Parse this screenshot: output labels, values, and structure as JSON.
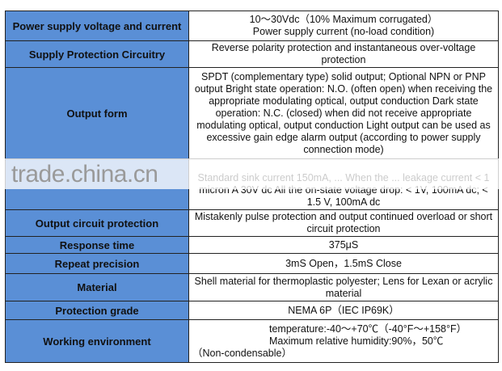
{
  "rows": [
    {
      "key": "Power supply voltage and current",
      "value": [
        "10～30Vdc（10% Maximum corrugated）",
        "Power supply current (no-load condition)"
      ]
    },
    {
      "key": "Supply Protection Circuitry",
      "value": [
        "Reverse polarity protection and instantaneous over-voltage protection"
      ]
    },
    {
      "key": "Output form",
      "value": [
        "SPDT (complementary type) solid output; Optional NPN or PNP output Bright state operation: N.O. (often open) when receiving the appropriate modulating optical, output conduction Dark state operation: N.C. (closed) when did not receive appropriate modulating optical, output conduction Light output can be used as excessive gain edge alarm output (according to power supply connection mode)"
      ]
    },
    {
      "key": "",
      "value": [
        "Standard sink current 150mA, ... When the ... leakage current < 1 micron A 30V dc All the on-state voltage drop: < 1V, 100mA dc; < 1.5 V, 100mA dc"
      ]
    },
    {
      "key": "Output circuit protection",
      "value": [
        "Mistakenly pulse protection and output continued overload or short circuit protection"
      ]
    },
    {
      "key": "Response time",
      "value": [
        "375μS"
      ]
    },
    {
      "key": "Repeat precision",
      "value": [
        "3mS Open，1.5mS Close"
      ]
    },
    {
      "key": "Material",
      "value": [
        "Shell material for thermoplastic polyester; Lens for Lexan or acrylic material"
      ]
    },
    {
      "key": "Protection grade",
      "value": [
        "NEMA 6P（IEC IP69K）"
      ]
    },
    {
      "key": "Working environment",
      "value": [
        "temperature:-40～+70℃（-40°F～+158°F）",
        "Maximum relative humidity:90%，50℃",
        "（Non-condensable）"
      ]
    }
  ],
  "watermark": "trade.china.cn",
  "colors": {
    "header_cell": "#5a8fd6"
  }
}
